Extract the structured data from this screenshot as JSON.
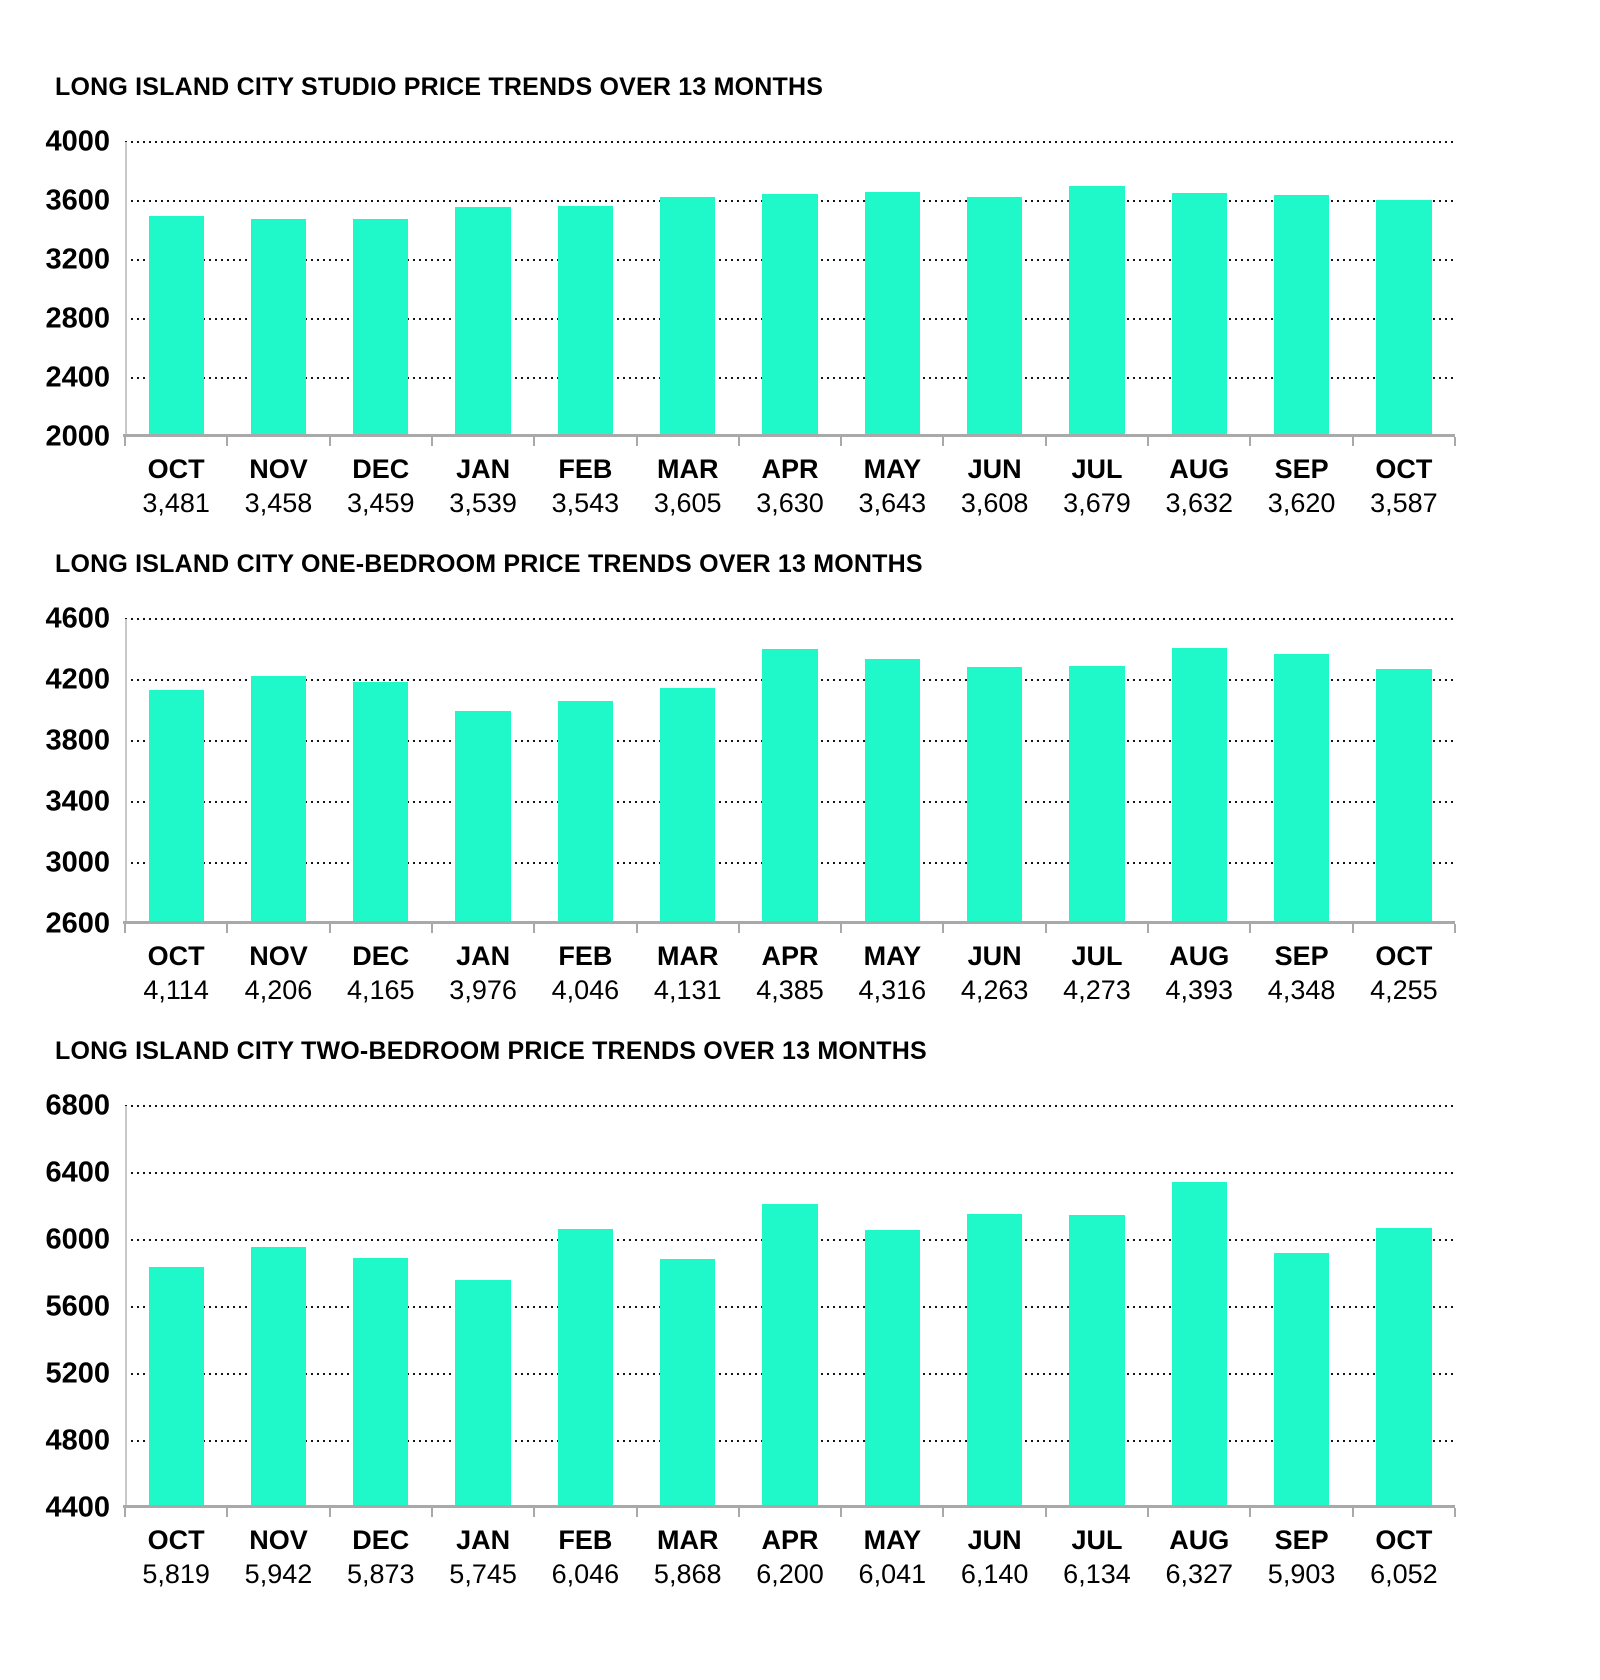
{
  "chart_data": [
    {
      "type": "bar",
      "title": "LONG ISLAND CITY STUDIO PRICE TRENDS OVER 13 MONTHS",
      "categories": [
        "OCT",
        "NOV",
        "DEC",
        "JAN",
        "FEB",
        "MAR",
        "APR",
        "MAY",
        "JUN",
        "JUL",
        "AUG",
        "SEP",
        "OCT"
      ],
      "values": [
        3481,
        3458,
        3459,
        3539,
        3543,
        3605,
        3630,
        3643,
        3608,
        3679,
        3632,
        3620,
        3587
      ],
      "value_labels": [
        "3,481",
        "3,458",
        "3,459",
        "3,539",
        "3,543",
        "3,605",
        "3,630",
        "3,643",
        "3,608",
        "3,679",
        "3,632",
        "3,620",
        "3,587"
      ],
      "xlabel": "",
      "ylabel": "",
      "ylim": [
        2000,
        4000
      ],
      "ytick_step": 400,
      "yticks": [
        2000,
        2400,
        2800,
        3200,
        3600,
        4000
      ],
      "grid": "dotted-horizontal",
      "legend": null,
      "bar_color": "#1ff9c9"
    },
    {
      "type": "bar",
      "title": "LONG ISLAND CITY ONE-BEDROOM PRICE TRENDS OVER 13 MONTHS",
      "categories": [
        "OCT",
        "NOV",
        "DEC",
        "JAN",
        "FEB",
        "MAR",
        "APR",
        "MAY",
        "JUN",
        "JUL",
        "AUG",
        "SEP",
        "OCT"
      ],
      "values": [
        4114,
        4206,
        4165,
        3976,
        4046,
        4131,
        4385,
        4316,
        4263,
        4273,
        4393,
        4348,
        4255
      ],
      "value_labels": [
        "4,114",
        "4,206",
        "4,165",
        "3,976",
        "4,046",
        "4,131",
        "4,385",
        "4,316",
        "4,263",
        "4,273",
        "4,393",
        "4,348",
        "4,255"
      ],
      "xlabel": "",
      "ylabel": "",
      "ylim": [
        2600,
        4600
      ],
      "ytick_step": 400,
      "yticks": [
        2600,
        3000,
        3400,
        3800,
        4200,
        4600
      ],
      "grid": "dotted-horizontal",
      "legend": null,
      "bar_color": "#1ff9c9"
    },
    {
      "type": "bar",
      "title": "LONG ISLAND CITY TWO-BEDROOM PRICE TRENDS OVER 13 MONTHS",
      "categories": [
        "OCT",
        "NOV",
        "DEC",
        "JAN",
        "FEB",
        "MAR",
        "APR",
        "MAY",
        "JUN",
        "JUL",
        "AUG",
        "SEP",
        "OCT"
      ],
      "values": [
        5819,
        5942,
        5873,
        5745,
        6046,
        5868,
        6200,
        6041,
        6140,
        6134,
        6327,
        5903,
        6052
      ],
      "value_labels": [
        "5,819",
        "5,942",
        "5,873",
        "5,745",
        "6,046",
        "5,868",
        "6,200",
        "6,041",
        "6,140",
        "6,134",
        "6,327",
        "5,903",
        "6,052"
      ],
      "xlabel": "",
      "ylabel": "",
      "ylim": [
        4400,
        6800
      ],
      "ytick_step": 400,
      "yticks": [
        4400,
        4800,
        5200,
        5600,
        6000,
        6400,
        6800
      ],
      "grid": "dotted-horizontal",
      "legend": null,
      "bar_color": "#1ff9c9"
    }
  ],
  "colors": {
    "bar": "#1ff9c9",
    "grid": "#141414",
    "axis": "#a9a9a9",
    "text": "#000000",
    "background": "#ffffff"
  }
}
